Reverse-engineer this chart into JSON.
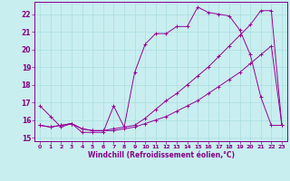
{
  "background_color": "#c8eef0",
  "grid_color": "#aadddd",
  "line_color": "#990099",
  "marker_color": "#990099",
  "xlabel": "Windchill (Refroidissement éolien,°C)",
  "tick_color": "#880088",
  "xlim": [
    -0.5,
    23.5
  ],
  "ylim": [
    14.8,
    22.7
  ],
  "yticks": [
    15,
    16,
    17,
    18,
    19,
    20,
    21,
    22
  ],
  "xticks": [
    0,
    1,
    2,
    3,
    4,
    5,
    6,
    7,
    8,
    9,
    10,
    11,
    12,
    13,
    14,
    15,
    16,
    17,
    18,
    19,
    20,
    21,
    22,
    23
  ],
  "line1_x": [
    0,
    1,
    2,
    3,
    4,
    5,
    6,
    7,
    8,
    9,
    10,
    11,
    12,
    13,
    14,
    15,
    16,
    17,
    18,
    19,
    20,
    21,
    22,
    23
  ],
  "line1_y": [
    16.8,
    16.2,
    15.6,
    15.8,
    15.3,
    15.3,
    15.3,
    16.8,
    15.6,
    18.7,
    20.3,
    20.9,
    20.9,
    21.3,
    21.3,
    22.4,
    22.1,
    22.0,
    21.9,
    21.1,
    19.7,
    17.3,
    15.7,
    15.7
  ],
  "line2_x": [
    0,
    1,
    2,
    3,
    4,
    5,
    6,
    7,
    8,
    9,
    10,
    11,
    12,
    13,
    14,
    15,
    16,
    17,
    18,
    19,
    20,
    21,
    22,
    23
  ],
  "line2_y": [
    15.7,
    15.6,
    15.7,
    15.8,
    15.5,
    15.4,
    15.4,
    15.4,
    15.5,
    15.6,
    15.8,
    16.0,
    16.2,
    16.5,
    16.8,
    17.1,
    17.5,
    17.9,
    18.3,
    18.7,
    19.2,
    19.7,
    20.2,
    15.7
  ],
  "line3_x": [
    0,
    1,
    2,
    3,
    4,
    5,
    6,
    7,
    8,
    9,
    10,
    11,
    12,
    13,
    14,
    15,
    16,
    17,
    18,
    19,
    20,
    21,
    22,
    23
  ],
  "line3_y": [
    15.7,
    15.6,
    15.7,
    15.8,
    15.5,
    15.4,
    15.4,
    15.5,
    15.6,
    15.7,
    16.1,
    16.6,
    17.1,
    17.5,
    18.0,
    18.5,
    19.0,
    19.6,
    20.2,
    20.8,
    21.4,
    22.2,
    22.2,
    15.7
  ],
  "figsize": [
    3.2,
    2.0
  ],
  "dpi": 100
}
